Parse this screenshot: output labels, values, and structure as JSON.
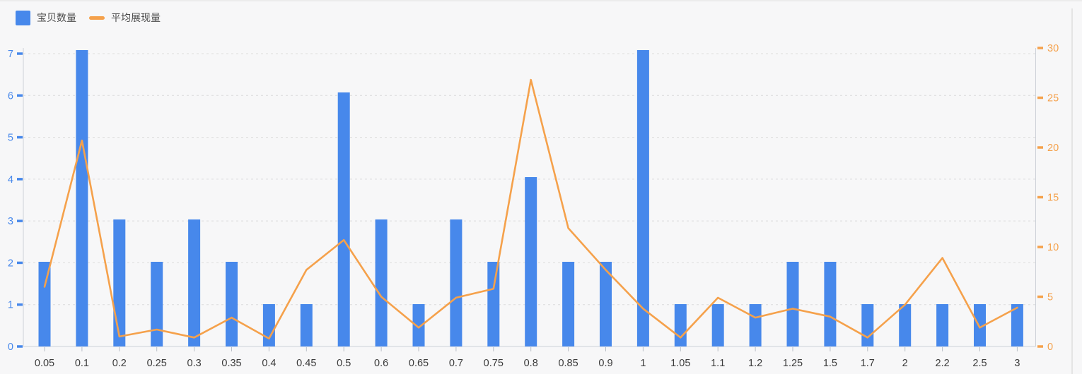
{
  "legend": {
    "bar_label": "宝贝数量",
    "line_label": "平均展现量"
  },
  "colors": {
    "bar": "#4788EB",
    "line": "#F5A14B",
    "left_axis_label": "#4788EB",
    "right_axis_label": "#F5A14B",
    "x_axis_label": "#3b3b3b",
    "grid_line": "#dcdcdc",
    "axis_line": "#cdd1d8",
    "x_tick": "#b9bec6",
    "background": "#f7f7f8"
  },
  "chart_data": {
    "type": "combo",
    "title": "",
    "categories": [
      "0.05",
      "0.1",
      "0.2",
      "0.25",
      "0.3",
      "0.35",
      "0.4",
      "0.45",
      "0.5",
      "0.6",
      "0.65",
      "0.7",
      "0.75",
      "0.8",
      "0.85",
      "0.9",
      "1",
      "1.05",
      "1.1",
      "1.2",
      "1.25",
      "1.5",
      "1.7",
      "2",
      "2.2",
      "2.5",
      "3"
    ],
    "series": [
      {
        "name": "宝贝数量",
        "type": "bar",
        "axis": "left",
        "color": "#4788EB",
        "values": [
          2,
          7,
          3,
          2,
          3,
          2,
          1,
          1,
          6,
          3,
          1,
          3,
          2,
          4,
          2,
          2,
          7,
          1,
          1,
          1,
          2,
          2,
          1,
          1,
          1,
          1,
          1
        ]
      },
      {
        "name": "平均展现量",
        "type": "line",
        "axis": "right",
        "color": "#F5A14B",
        "values": [
          6,
          20.7,
          1,
          1.7,
          0.9,
          2.9,
          0.8,
          7.7,
          10.7,
          5,
          1.9,
          4.9,
          5.8,
          26.8,
          11.9,
          7.7,
          3.8,
          0.9,
          4.9,
          2.9,
          3.8,
          3,
          0.9,
          4.2,
          8.9,
          1.9,
          3.9
        ]
      }
    ],
    "left_axis": {
      "min": 0,
      "max": 7,
      "interval": 1,
      "ticks": [
        "0",
        "1",
        "2",
        "3",
        "4",
        "5",
        "6",
        "7"
      ]
    },
    "right_axis": {
      "min": 0,
      "max": 30,
      "interval": 5,
      "ticks": [
        "0",
        "5",
        "10",
        "15",
        "20",
        "25",
        "30"
      ]
    },
    "grid": "horizontal-dashed",
    "legend_position": "top-left",
    "xlabel": "",
    "ylabel": ""
  }
}
